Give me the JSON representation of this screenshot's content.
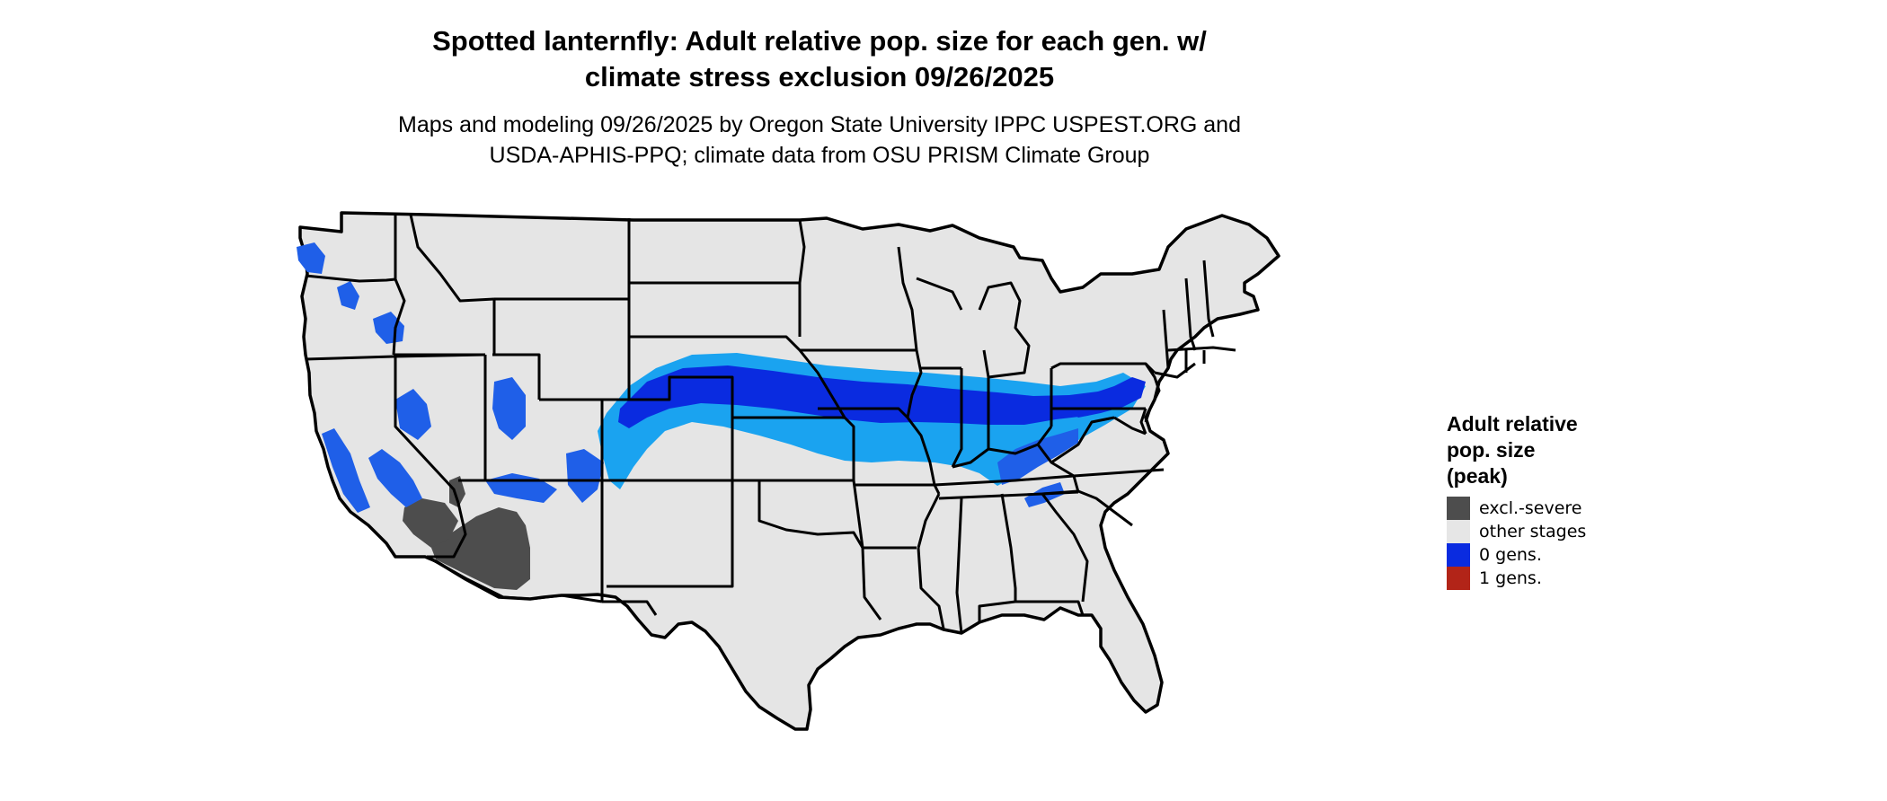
{
  "title": {
    "line1": "Spotted lanternfly: Adult relative pop. size for each gen. w/",
    "line2": "climate stress exclusion 09/26/2025"
  },
  "subtitle": {
    "line1": "Maps and modeling 09/26/2025 by Oregon State University IPPC USPEST.ORG and",
    "line2": "USDA-APHIS-PPQ; climate data from OSU PRISM Climate Group"
  },
  "legend": {
    "title_lines": [
      "Adult relative",
      "pop. size",
      "(peak)"
    ],
    "items": [
      {
        "label": "excl.-severe",
        "color": "#4d4d4d"
      },
      {
        "label": "other stages",
        "color": "#e6e6e6"
      },
      {
        "label": "0 gens.",
        "color": "#0a2be0"
      },
      {
        "label": "1 gens.",
        "color": "#b22418"
      }
    ]
  },
  "map": {
    "land_color": "#e5e5e5",
    "border_color": "#000000",
    "region_colors": {
      "excluded": "#4d4d4d",
      "zero_gens_dark": "#0a2be0",
      "zero_gens_mid": "#1f5fe8",
      "zero_gens_light": "#1aa3f0"
    }
  }
}
